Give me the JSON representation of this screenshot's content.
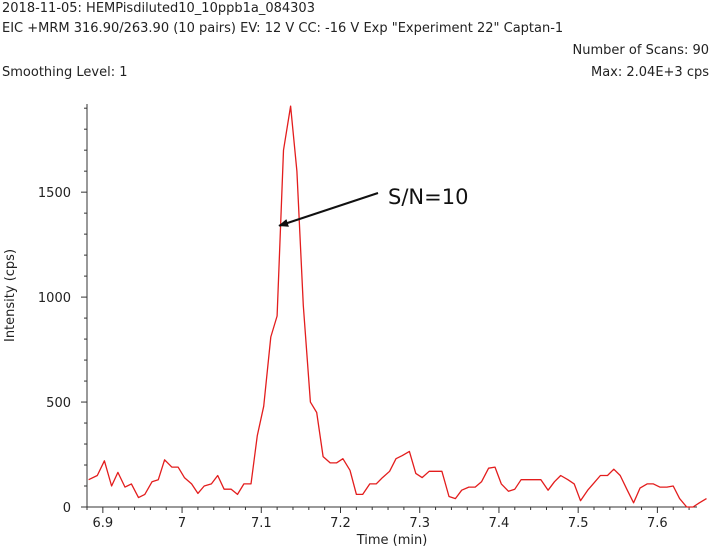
{
  "header": {
    "line1": "2018-11-05: HEMPisdiluted10_10ppb1a_084303",
    "line2": "EIC +MRM 316.90/263.90 (10 pairs) EV: 12 V CC: -16 V Exp \"Experiment 22\" Captan-1",
    "smoothing": "Smoothing Level: 1",
    "scans": "Number of Scans: 90",
    "max": "Max: 2.04E+3 cps"
  },
  "chart_data": {
    "type": "line",
    "title": "",
    "xlabel": "Time (min)",
    "ylabel": "Intensity (cps)",
    "xlim": [
      6.88,
      7.65
    ],
    "ylim": [
      0,
      1920
    ],
    "x_ticks": [
      6.9,
      7,
      7.1,
      7.2,
      7.3,
      7.4,
      7.5,
      7.6
    ],
    "x_tick_labels": [
      "6.9",
      "7",
      "7.1",
      "7.2",
      "7.3",
      "7.4",
      "7.5",
      "7.6"
    ],
    "y_ticks": [
      0,
      500,
      1000,
      1500
    ],
    "y_tick_labels": [
      "0",
      "500",
      "1000",
      "1500"
    ],
    "grid": false,
    "line_color": "#e31d1d",
    "annotation": {
      "text": "S/N=10",
      "points_to": [
        7.12,
        1340
      ]
    },
    "series": [
      {
        "values": [
          [
            6.882,
            130
          ],
          [
            6.893,
            150
          ],
          [
            6.902,
            220
          ],
          [
            6.911,
            100
          ],
          [
            6.919,
            165
          ],
          [
            6.928,
            95
          ],
          [
            6.936,
            110
          ],
          [
            6.945,
            45
          ],
          [
            6.953,
            60
          ],
          [
            6.962,
            120
          ],
          [
            6.97,
            130
          ],
          [
            6.978,
            225
          ],
          [
            6.987,
            190
          ],
          [
            6.995,
            190
          ],
          [
            7.003,
            140
          ],
          [
            7.012,
            110
          ],
          [
            7.02,
            65
          ],
          [
            7.028,
            100
          ],
          [
            7.037,
            110
          ],
          [
            7.045,
            150
          ],
          [
            7.053,
            85
          ],
          [
            7.062,
            85
          ],
          [
            7.07,
            60
          ],
          [
            7.078,
            110
          ],
          [
            7.087,
            110
          ],
          [
            7.095,
            340
          ],
          [
            7.103,
            480
          ],
          [
            7.112,
            810
          ],
          [
            7.12,
            910
          ],
          [
            7.128,
            1700
          ],
          [
            7.137,
            1910
          ],
          [
            7.145,
            1600
          ],
          [
            7.153,
            960
          ],
          [
            7.162,
            500
          ],
          [
            7.17,
            450
          ],
          [
            7.178,
            240
          ],
          [
            7.187,
            210
          ],
          [
            7.195,
            210
          ],
          [
            7.203,
            230
          ],
          [
            7.212,
            175
          ],
          [
            7.22,
            60
          ],
          [
            7.228,
            60
          ],
          [
            7.237,
            110
          ],
          [
            7.245,
            110
          ],
          [
            7.253,
            140
          ],
          [
            7.262,
            170
          ],
          [
            7.27,
            230
          ],
          [
            7.278,
            245
          ],
          [
            7.287,
            265
          ],
          [
            7.295,
            160
          ],
          [
            7.303,
            140
          ],
          [
            7.312,
            170
          ],
          [
            7.32,
            170
          ],
          [
            7.328,
            170
          ],
          [
            7.337,
            50
          ],
          [
            7.345,
            40
          ],
          [
            7.353,
            80
          ],
          [
            7.362,
            95
          ],
          [
            7.37,
            95
          ],
          [
            7.378,
            120
          ],
          [
            7.387,
            185
          ],
          [
            7.395,
            190
          ],
          [
            7.403,
            110
          ],
          [
            7.412,
            75
          ],
          [
            7.42,
            85
          ],
          [
            7.428,
            130
          ],
          [
            7.437,
            130
          ],
          [
            7.445,
            130
          ],
          [
            7.453,
            130
          ],
          [
            7.462,
            80
          ],
          [
            7.47,
            120
          ],
          [
            7.478,
            150
          ],
          [
            7.487,
            130
          ],
          [
            7.495,
            110
          ],
          [
            7.503,
            30
          ],
          [
            7.512,
            80
          ],
          [
            7.52,
            115
          ],
          [
            7.528,
            150
          ],
          [
            7.537,
            150
          ],
          [
            7.545,
            180
          ],
          [
            7.553,
            150
          ],
          [
            7.562,
            80
          ],
          [
            7.57,
            20
          ],
          [
            7.578,
            90
          ],
          [
            7.587,
            110
          ],
          [
            7.595,
            110
          ],
          [
            7.603,
            95
          ],
          [
            7.612,
            95
          ],
          [
            7.62,
            100
          ],
          [
            7.628,
            40
          ],
          [
            7.637,
            0
          ],
          [
            7.645,
            0
          ],
          [
            7.653,
            20
          ],
          [
            7.662,
            40
          ]
        ]
      }
    ]
  }
}
